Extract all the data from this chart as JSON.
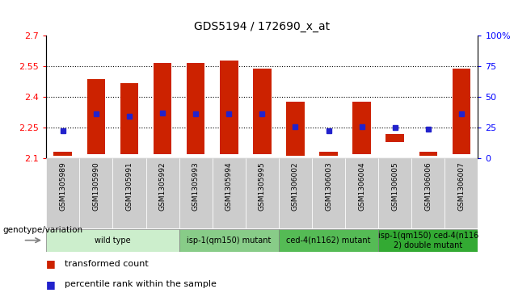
{
  "title": "GDS5194 / 172690_x_at",
  "samples": [
    "GSM1305989",
    "GSM1305990",
    "GSM1305991",
    "GSM1305992",
    "GSM1305993",
    "GSM1305994",
    "GSM1305995",
    "GSM1306002",
    "GSM1306003",
    "GSM1306004",
    "GSM1306005",
    "GSM1306006",
    "GSM1306007"
  ],
  "bar_bottom": [
    2.11,
    2.12,
    2.12,
    2.12,
    2.12,
    2.12,
    2.12,
    2.11,
    2.11,
    2.12,
    2.18,
    2.11,
    2.12
  ],
  "bar_top": [
    2.13,
    2.485,
    2.465,
    2.565,
    2.565,
    2.575,
    2.535,
    2.375,
    2.13,
    2.375,
    2.22,
    2.13,
    2.535
  ],
  "blue_dot_y": [
    2.235,
    2.315,
    2.305,
    2.32,
    2.315,
    2.315,
    2.315,
    2.255,
    2.235,
    2.255,
    2.25,
    2.24,
    2.315
  ],
  "ylim_left": [
    2.1,
    2.7
  ],
  "ylim_right": [
    0,
    100
  ],
  "yticks_left": [
    2.1,
    2.25,
    2.4,
    2.55,
    2.7
  ],
  "yticks_right": [
    0,
    25,
    50,
    75,
    100
  ],
  "ytick_labels_left": [
    "2.1",
    "2.25",
    "2.4",
    "2.55",
    "2.7"
  ],
  "ytick_labels_right": [
    "0",
    "25",
    "50",
    "75",
    "100%"
  ],
  "bar_color": "#cc2200",
  "dot_color": "#2222cc",
  "groups": [
    {
      "label": "wild type",
      "indices": [
        0,
        1,
        2,
        3
      ],
      "color": "#cceecc"
    },
    {
      "label": "isp-1(qm150) mutant",
      "indices": [
        4,
        5,
        6
      ],
      "color": "#88cc88"
    },
    {
      "label": "ced-4(n1162) mutant",
      "indices": [
        7,
        8,
        9
      ],
      "color": "#55bb55"
    },
    {
      "label": "isp-1(qm150) ced-4(n116\n2) double mutant",
      "indices": [
        10,
        11,
        12
      ],
      "color": "#33aa33"
    }
  ],
  "legend_bar_label": "transformed count",
  "legend_dot_label": "percentile rank within the sample",
  "genotype_label": "genotype/variation",
  "tick_area_color": "#cccccc",
  "grid_yticks": [
    2.25,
    2.4,
    2.55
  ]
}
